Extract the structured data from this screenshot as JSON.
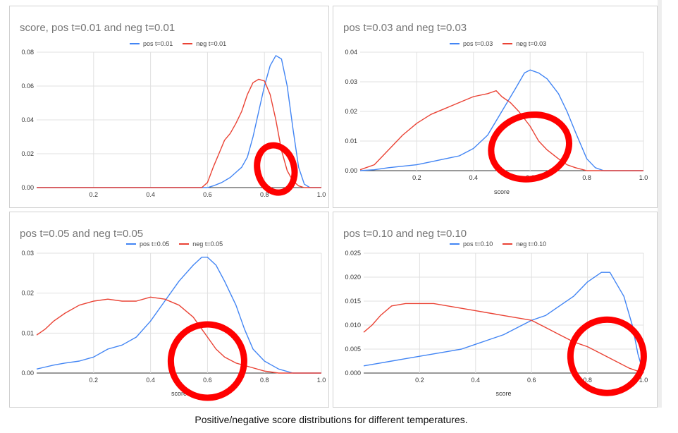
{
  "caption": "Positive/negative score distributions for different temperatures.",
  "colors": {
    "pos": "#4285f4",
    "neg": "#ea4335",
    "grid": "#e0e0e0",
    "axis": "#333333",
    "marker": "#ff0000"
  },
  "chart_data": [
    {
      "type": "line",
      "title": "score, pos t=0.01 and neg t=0.01",
      "xlabel": "",
      "ylabel": "",
      "xlim": [
        0,
        1.0
      ],
      "ylim": [
        0,
        0.08
      ],
      "xticks": [
        "0.2",
        "0.4",
        "0.6",
        "0.8",
        "1.0"
      ],
      "yticks": [
        "0.00",
        "0.02",
        "0.04",
        "0.06",
        "0.08"
      ],
      "legend_position": "top",
      "series": [
        {
          "name": "pos t=0.01",
          "color": "#4285f4",
          "points": [
            [
              0,
              0
            ],
            [
              0.55,
              0
            ],
            [
              0.6,
              0
            ],
            [
              0.62,
              0.001
            ],
            [
              0.65,
              0.003
            ],
            [
              0.68,
              0.006
            ],
            [
              0.7,
              0.009
            ],
            [
              0.72,
              0.012
            ],
            [
              0.74,
              0.018
            ],
            [
              0.76,
              0.03
            ],
            [
              0.78,
              0.045
            ],
            [
              0.8,
              0.06
            ],
            [
              0.82,
              0.072
            ],
            [
              0.84,
              0.078
            ],
            [
              0.86,
              0.076
            ],
            [
              0.88,
              0.06
            ],
            [
              0.9,
              0.035
            ],
            [
              0.92,
              0.012
            ],
            [
              0.94,
              0.002
            ],
            [
              0.96,
              0
            ],
            [
              1.0,
              0
            ]
          ]
        },
        {
          "name": "neg t=0.01",
          "color": "#ea4335",
          "points": [
            [
              0,
              0
            ],
            [
              0.58,
              0
            ],
            [
              0.6,
              0.003
            ],
            [
              0.62,
              0.012
            ],
            [
              0.64,
              0.02
            ],
            [
              0.66,
              0.028
            ],
            [
              0.68,
              0.032
            ],
            [
              0.7,
              0.038
            ],
            [
              0.72,
              0.045
            ],
            [
              0.74,
              0.055
            ],
            [
              0.76,
              0.062
            ],
            [
              0.78,
              0.064
            ],
            [
              0.8,
              0.063
            ],
            [
              0.82,
              0.055
            ],
            [
              0.84,
              0.04
            ],
            [
              0.86,
              0.022
            ],
            [
              0.88,
              0.01
            ],
            [
              0.9,
              0.004
            ],
            [
              0.92,
              0.001
            ],
            [
              0.94,
              0
            ],
            [
              1.0,
              0
            ]
          ]
        }
      ],
      "circle": [
        0.84,
        0.011
      ]
    },
    {
      "type": "line",
      "title": "pos t=0.03 and neg t=0.03",
      "xlabel": "score",
      "ylabel": "",
      "xlim": [
        0,
        1.0
      ],
      "ylim": [
        0,
        0.04
      ],
      "xticks": [
        "0.2",
        "0.4",
        "0.6",
        "0.8",
        "1.0"
      ],
      "yticks": [
        "0.00",
        "0.01",
        "0.02",
        "0.03",
        "0.04"
      ],
      "legend_position": "top",
      "series": [
        {
          "name": "pos t=0.03",
          "color": "#4285f4",
          "points": [
            [
              0,
              0
            ],
            [
              0.05,
              0.0003
            ],
            [
              0.1,
              0.001
            ],
            [
              0.15,
              0.0015
            ],
            [
              0.2,
              0.002
            ],
            [
              0.25,
              0.003
            ],
            [
              0.3,
              0.004
            ],
            [
              0.35,
              0.005
            ],
            [
              0.4,
              0.0075
            ],
            [
              0.45,
              0.012
            ],
            [
              0.5,
              0.02
            ],
            [
              0.55,
              0.028
            ],
            [
              0.58,
              0.033
            ],
            [
              0.6,
              0.034
            ],
            [
              0.63,
              0.033
            ],
            [
              0.66,
              0.031
            ],
            [
              0.7,
              0.026
            ],
            [
              0.73,
              0.02
            ],
            [
              0.76,
              0.013
            ],
            [
              0.8,
              0.004
            ],
            [
              0.83,
              0.001
            ],
            [
              0.86,
              0
            ],
            [
              1.0,
              0
            ]
          ]
        },
        {
          "name": "neg t=0.03",
          "color": "#ea4335",
          "points": [
            [
              0,
              0.0003
            ],
            [
              0.05,
              0.002
            ],
            [
              0.1,
              0.007
            ],
            [
              0.15,
              0.012
            ],
            [
              0.2,
              0.016
            ],
            [
              0.25,
              0.019
            ],
            [
              0.3,
              0.021
            ],
            [
              0.35,
              0.023
            ],
            [
              0.4,
              0.025
            ],
            [
              0.45,
              0.026
            ],
            [
              0.48,
              0.027
            ],
            [
              0.5,
              0.025
            ],
            [
              0.53,
              0.023
            ],
            [
              0.56,
              0.02
            ],
            [
              0.6,
              0.015
            ],
            [
              0.63,
              0.01
            ],
            [
              0.66,
              0.007
            ],
            [
              0.7,
              0.004
            ],
            [
              0.73,
              0.002
            ],
            [
              0.76,
              0.001
            ],
            [
              0.8,
              0
            ],
            [
              1.0,
              0
            ]
          ]
        }
      ],
      "circle": [
        0.6,
        0.008
      ]
    },
    {
      "type": "line",
      "title": "pos t=0.05 and neg t=0.05",
      "xlabel": "score",
      "ylabel": "",
      "xlim": [
        0,
        1.0
      ],
      "ylim": [
        0,
        0.03
      ],
      "xticks": [
        "0.2",
        "0.4",
        "0.6",
        "0.8",
        "1.0"
      ],
      "yticks": [
        "0.00",
        "0.01",
        "0.02",
        "0.03"
      ],
      "legend_position": "top",
      "series": [
        {
          "name": "pos t=0.05",
          "color": "#4285f4",
          "points": [
            [
              0,
              0.001
            ],
            [
              0.03,
              0.0015
            ],
            [
              0.06,
              0.002
            ],
            [
              0.1,
              0.0025
            ],
            [
              0.15,
              0.003
            ],
            [
              0.2,
              0.004
            ],
            [
              0.25,
              0.006
            ],
            [
              0.3,
              0.007
            ],
            [
              0.35,
              0.009
            ],
            [
              0.4,
              0.013
            ],
            [
              0.45,
              0.018
            ],
            [
              0.5,
              0.023
            ],
            [
              0.55,
              0.027
            ],
            [
              0.58,
              0.029
            ],
            [
              0.6,
              0.029
            ],
            [
              0.63,
              0.027
            ],
            [
              0.66,
              0.023
            ],
            [
              0.7,
              0.017
            ],
            [
              0.73,
              0.011
            ],
            [
              0.76,
              0.006
            ],
            [
              0.8,
              0.003
            ],
            [
              0.85,
              0.001
            ],
            [
              0.9,
              0
            ],
            [
              1.0,
              0
            ]
          ]
        },
        {
          "name": "neg t=0.05",
          "color": "#ea4335",
          "points": [
            [
              0,
              0.0095
            ],
            [
              0.03,
              0.011
            ],
            [
              0.06,
              0.013
            ],
            [
              0.1,
              0.015
            ],
            [
              0.15,
              0.017
            ],
            [
              0.2,
              0.018
            ],
            [
              0.25,
              0.0185
            ],
            [
              0.3,
              0.018
            ],
            [
              0.35,
              0.018
            ],
            [
              0.4,
              0.019
            ],
            [
              0.45,
              0.0185
            ],
            [
              0.5,
              0.017
            ],
            [
              0.55,
              0.014
            ],
            [
              0.58,
              0.011
            ],
            [
              0.6,
              0.009
            ],
            [
              0.63,
              0.006
            ],
            [
              0.66,
              0.004
            ],
            [
              0.7,
              0.0025
            ],
            [
              0.75,
              0.0015
            ],
            [
              0.8,
              0.0005
            ],
            [
              0.85,
              0
            ],
            [
              1.0,
              0
            ]
          ]
        }
      ],
      "circle": [
        0.6,
        0.003
      ]
    },
    {
      "type": "line",
      "title": "pos t=0.10 and neg t=0.10",
      "xlabel": "score",
      "ylabel": "",
      "xlim": [
        0,
        1.0
      ],
      "ylim": [
        0,
        0.025
      ],
      "xticks": [
        "0.2",
        "0.4",
        "0.6",
        "0.8",
        "1.0"
      ],
      "yticks": [
        "0.000",
        "0.005",
        "0.010",
        "0.015",
        "0.020",
        "0.025"
      ],
      "legend_position": "top",
      "series": [
        {
          "name": "pos t=0.10",
          "color": "#4285f4",
          "points": [
            [
              0,
              0.0015
            ],
            [
              0.05,
              0.002
            ],
            [
              0.1,
              0.0025
            ],
            [
              0.15,
              0.003
            ],
            [
              0.2,
              0.0035
            ],
            [
              0.25,
              0.004
            ],
            [
              0.3,
              0.0045
            ],
            [
              0.35,
              0.005
            ],
            [
              0.4,
              0.006
            ],
            [
              0.45,
              0.007
            ],
            [
              0.5,
              0.008
            ],
            [
              0.55,
              0.0095
            ],
            [
              0.6,
              0.011
            ],
            [
              0.65,
              0.012
            ],
            [
              0.7,
              0.014
            ],
            [
              0.75,
              0.016
            ],
            [
              0.8,
              0.019
            ],
            [
              0.85,
              0.021
            ],
            [
              0.88,
              0.021
            ],
            [
              0.9,
              0.019
            ],
            [
              0.93,
              0.016
            ],
            [
              0.96,
              0.01
            ],
            [
              0.98,
              0.004
            ],
            [
              1.0,
              0
            ]
          ]
        },
        {
          "name": "neg t=0.10",
          "color": "#ea4335",
          "points": [
            [
              0,
              0.0085
            ],
            [
              0.03,
              0.01
            ],
            [
              0.06,
              0.012
            ],
            [
              0.1,
              0.014
            ],
            [
              0.15,
              0.0145
            ],
            [
              0.2,
              0.0145
            ],
            [
              0.25,
              0.0145
            ],
            [
              0.3,
              0.014
            ],
            [
              0.35,
              0.0135
            ],
            [
              0.4,
              0.013
            ],
            [
              0.45,
              0.0125
            ],
            [
              0.5,
              0.012
            ],
            [
              0.55,
              0.0115
            ],
            [
              0.6,
              0.011
            ],
            [
              0.65,
              0.0095
            ],
            [
              0.7,
              0.008
            ],
            [
              0.75,
              0.0065
            ],
            [
              0.8,
              0.0055
            ],
            [
              0.85,
              0.004
            ],
            [
              0.9,
              0.0025
            ],
            [
              0.95,
              0.001
            ],
            [
              1.0,
              0
            ]
          ]
        }
      ],
      "circle": [
        0.87,
        0.0035
      ]
    }
  ]
}
